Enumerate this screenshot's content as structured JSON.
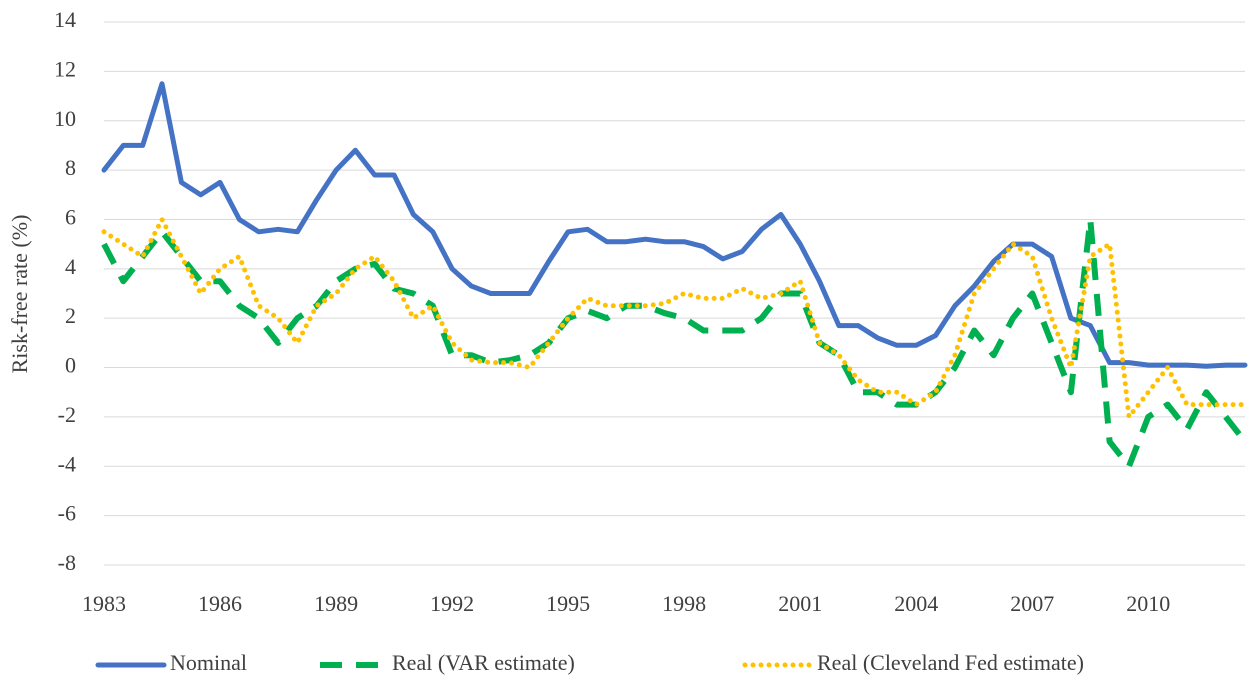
{
  "chart_data": {
    "type": "line",
    "y_label": "Risk-free rate (%)",
    "x": [
      1983,
      1983.5,
      1984,
      1984.5,
      1985,
      1985.5,
      1986,
      1986.5,
      1987,
      1987.5,
      1988,
      1988.5,
      1989,
      1989.5,
      1990,
      1990.5,
      1991,
      1991.5,
      1992,
      1992.5,
      1993,
      1993.5,
      1994,
      1994.5,
      1995,
      1995.5,
      1996,
      1996.5,
      1997,
      1997.5,
      1998,
      1998.5,
      1999,
      1999.5,
      2000,
      2000.5,
      2001,
      2001.5,
      2002,
      2002.5,
      2003,
      2003.5,
      2004,
      2004.5,
      2005,
      2005.5,
      2006,
      2006.5,
      2007,
      2007.5,
      2008,
      2008.5,
      2009,
      2009.5,
      2010,
      2010.5,
      2011,
      2011.5,
      2012,
      2012.5
    ],
    "series": [
      {
        "name": "Nominal",
        "color": "#4472c4",
        "line_style": "solid",
        "values": [
          8.0,
          9.0,
          9.0,
          11.5,
          7.5,
          7.0,
          7.5,
          6.0,
          5.5,
          5.6,
          5.5,
          6.8,
          8.0,
          8.8,
          7.8,
          7.8,
          6.2,
          5.5,
          4.0,
          3.3,
          3.0,
          3.0,
          3.0,
          4.3,
          5.5,
          5.6,
          5.1,
          5.1,
          5.2,
          5.1,
          5.1,
          4.9,
          4.4,
          4.7,
          5.6,
          6.2,
          5.0,
          3.5,
          1.7,
          1.7,
          1.2,
          0.9,
          0.9,
          1.3,
          2.5,
          3.3,
          4.3,
          5.0,
          5.0,
          4.5,
          2.0,
          1.7,
          0.2,
          0.2,
          0.1,
          0.1,
          0.1,
          0.05,
          0.1,
          0.1
        ]
      },
      {
        "name": "Real (VAR estimate)",
        "color": "#00b050",
        "line_style": "dashed",
        "values": [
          5.0,
          3.5,
          4.5,
          5.5,
          4.5,
          3.5,
          3.5,
          2.5,
          2.0,
          1.0,
          2.0,
          2.5,
          3.5,
          4.0,
          4.2,
          3.2,
          3.0,
          2.5,
          0.5,
          0.5,
          0.2,
          0.3,
          0.5,
          1.0,
          2.0,
          2.3,
          2.0,
          2.5,
          2.5,
          2.2,
          2.0,
          1.5,
          1.5,
          1.5,
          2.0,
          3.0,
          3.0,
          1.0,
          0.5,
          -1.0,
          -1.0,
          -1.5,
          -1.5,
          -1.0,
          0.0,
          1.5,
          0.5,
          2.0,
          3.0,
          1.0,
          -1.0,
          6.0,
          -3.0,
          -4.0,
          -2.0,
          -1.5,
          -2.5,
          -1.0,
          -2.0,
          -3.0
        ]
      },
      {
        "name": "Real (Cleveland Fed estimate)",
        "color": "#ffc000",
        "line_style": "dotted",
        "values": [
          5.5,
          5.0,
          4.5,
          6.0,
          4.5,
          3.0,
          4.0,
          4.5,
          2.5,
          2.0,
          1.0,
          2.5,
          3.0,
          4.0,
          4.5,
          3.5,
          2.0,
          2.5,
          1.0,
          0.3,
          0.2,
          0.2,
          0.0,
          1.0,
          2.0,
          2.8,
          2.5,
          2.5,
          2.5,
          2.6,
          3.0,
          2.8,
          2.8,
          3.2,
          2.8,
          3.0,
          3.5,
          1.0,
          0.5,
          -0.5,
          -1.0,
          -1.0,
          -1.5,
          -1.0,
          0.5,
          3.0,
          4.0,
          5.0,
          4.5,
          2.0,
          0.0,
          4.5,
          5.0,
          -2.0,
          -1.0,
          0.0,
          -1.5,
          -1.5,
          -1.5,
          -1.5
        ]
      }
    ],
    "xlim": [
      1983,
      2012.5
    ],
    "xticks": [
      1983,
      1986,
      1989,
      1992,
      1995,
      1998,
      2001,
      2004,
      2007,
      2010
    ],
    "ylim": [
      -8,
      14
    ],
    "yticks": [
      -8,
      -6,
      -4,
      -2,
      0,
      2,
      4,
      6,
      8,
      10,
      12,
      14
    ],
    "grid": true,
    "legend": "bottom"
  }
}
